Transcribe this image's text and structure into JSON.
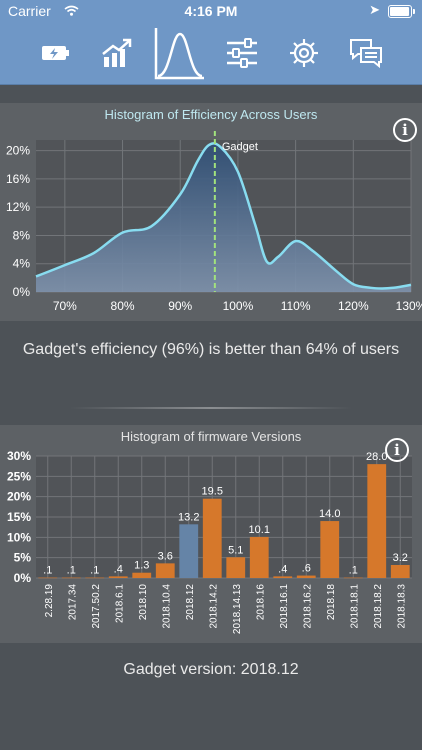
{
  "status_bar": {
    "carrier": "Carrier",
    "time": "4:16 PM"
  },
  "toolbar": {
    "items": [
      {
        "icon": "battery-bolt-icon",
        "selected": false
      },
      {
        "icon": "growth-chart-icon",
        "selected": false
      },
      {
        "icon": "bell-curve-icon",
        "selected": true
      },
      {
        "icon": "sliders-icon",
        "selected": false
      },
      {
        "icon": "gear-icon",
        "selected": false
      },
      {
        "icon": "chat-bubbles-icon",
        "selected": false
      }
    ]
  },
  "efficiency_panel": {
    "info_label": "i",
    "summary": "Gadget's efficiency (96%) is better than 64% of users"
  },
  "firmware_panel": {
    "info_label": "i",
    "version_text": "Gadget version: 2018.12"
  },
  "chart_data": [
    {
      "type": "area",
      "title": "Histogram of Efficiency Across Users",
      "xlabel": "",
      "ylabel": "",
      "x_ticks": [
        "70%",
        "80%",
        "90%",
        "100%",
        "110%",
        "120%",
        "130%"
      ],
      "y_ticks": [
        "0%",
        "4%",
        "8%",
        "12%",
        "16%",
        "20%"
      ],
      "xlim": [
        65,
        130
      ],
      "ylim": [
        0,
        21.5
      ],
      "x": [
        65,
        70,
        75,
        80,
        85,
        90,
        93,
        95,
        97,
        100,
        103,
        105,
        107,
        110,
        113,
        117,
        120,
        123,
        125,
        127,
        130
      ],
      "y": [
        2.2,
        3.8,
        5.5,
        8.4,
        9.3,
        13.8,
        18.5,
        20.8,
        20.5,
        17.0,
        9.5,
        4.3,
        5.0,
        7.2,
        5.8,
        3.0,
        1.1,
        0.6,
        0.5,
        0.6,
        1.0
      ],
      "marker": {
        "x": 96,
        "label": "Gadget"
      },
      "colors": {
        "line": "#88dcf0",
        "fill_top": "#2f4f76",
        "fill_bottom": "#7f93ad",
        "marker": "#a2e27d"
      },
      "grid": true
    },
    {
      "type": "bar",
      "title": "Histogram of firmware Versions",
      "xlabel": "",
      "ylabel": "",
      "y_ticks": [
        "0%",
        "5%",
        "10%",
        "15%",
        "20%",
        "25%",
        "30%"
      ],
      "ylim": [
        0,
        30
      ],
      "categories": [
        "2.28.19",
        "2017.34",
        "2017.50.2",
        "2018.6.1",
        "2018.10",
        "2018.10.4",
        "2018.12",
        "2018.14.2",
        "2018.14.13",
        "2018.16",
        "2018.16.1",
        "2018.16.2",
        "2018.18",
        "2018.18.1",
        "2018.18.2",
        "2018.18.3"
      ],
      "values": [
        0.1,
        0.1,
        0.1,
        0.4,
        1.3,
        3.6,
        13.2,
        19.5,
        5.1,
        10.1,
        0.4,
        0.6,
        14.0,
        0.1,
        28.0,
        3.2
      ],
      "labels": [
        ".1",
        ".1",
        ".1",
        ".4",
        "1.3",
        "3.6",
        "13.2",
        "19.5",
        "5.1",
        "10.1",
        ".4",
        ".6",
        "14.0",
        ".1",
        "28.0",
        "3.2"
      ],
      "highlight": "2018.12",
      "colors": {
        "bar": "#d6782b",
        "highlight": "#6584a7"
      },
      "grid": true
    }
  ]
}
